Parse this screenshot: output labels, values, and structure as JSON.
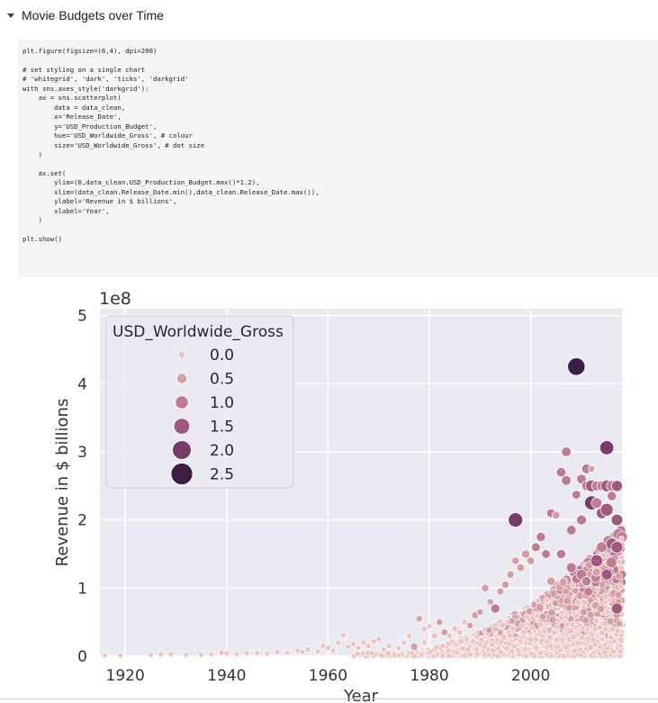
{
  "section": {
    "title": "Movie Budgets over Time",
    "caret_icon": "caret-down-icon"
  },
  "code": {
    "lines": [
      "plt.figure(figsize=(6,4), dpi=200)",
      "",
      "# set styling on a single chart",
      "# 'whitegrid', 'dark', 'ticks', 'darkgrid'",
      "with sns.axes_style('darkgrid'):",
      "    ax = sns.scatterplot(",
      "        data = data_clean,",
      "        x='Release_Date',",
      "        y='USD_Production_Budget',",
      "        hue='USD_Worldwide_Gross', # colour",
      "        size='USD_Worldwide_Gross', # dot size",
      "    )",
      "",
      "    ax.set(",
      "        ylim=(0,data_clean.USD_Production_Budget.max()*1.2),",
      "        xlim=(data_clean.Release_Date.min(),data_clean.Release_Date.max()),",
      "        ylabel='Revenue in $ billions',",
      "        xlabel='Year',",
      "    )",
      "",
      "plt.show()"
    ]
  },
  "chart_data": {
    "type": "scatter",
    "xlabel": "Year",
    "ylabel": "Revenue in $ billions",
    "offset_label": "1e8",
    "xlim": [
      1915,
      2018
    ],
    "ylim": [
      0,
      5.1
    ],
    "xticks": [
      1920,
      1940,
      1960,
      1980,
      2000
    ],
    "xtick_labels": [
      "1920",
      "1940",
      "1960",
      "1980",
      "2000"
    ],
    "yticks": [
      0,
      1,
      2,
      3,
      4,
      5
    ],
    "ytick_labels": [
      "0",
      "1",
      "2",
      "3",
      "4",
      "5"
    ],
    "grid": true,
    "legend": {
      "title": "USD_Worldwide_Gross",
      "placement": "upper-left",
      "entries": [
        {
          "label": "0.0",
          "color": "#ecc5c3"
        },
        {
          "label": "0.5",
          "color": "#d59ea3"
        },
        {
          "label": "1.0",
          "color": "#c07b92"
        },
        {
          "label": "1.5",
          "color": "#a2577f"
        },
        {
          "label": "2.0",
          "color": "#773c6c"
        },
        {
          "label": "2.5",
          "color": "#3a1f43"
        }
      ]
    },
    "points": [
      {
        "x": 1916,
        "y": 0.01,
        "g": 0.0
      },
      {
        "x": 1919,
        "y": 0.01,
        "g": 0.0
      },
      {
        "x": 1925,
        "y": 0.02,
        "g": 0.0
      },
      {
        "x": 1927,
        "y": 0.03,
        "g": 0.0
      },
      {
        "x": 1929,
        "y": 0.03,
        "g": 0.0
      },
      {
        "x": 1932,
        "y": 0.02,
        "g": 0.0
      },
      {
        "x": 1935,
        "y": 0.02,
        "g": 0.0
      },
      {
        "x": 1937,
        "y": 0.03,
        "g": 0.0
      },
      {
        "x": 1939,
        "y": 0.05,
        "g": 0.1
      },
      {
        "x": 1940,
        "y": 0.04,
        "g": 0.0
      },
      {
        "x": 1942,
        "y": 0.03,
        "g": 0.0
      },
      {
        "x": 1944,
        "y": 0.04,
        "g": 0.0
      },
      {
        "x": 1946,
        "y": 0.05,
        "g": 0.0
      },
      {
        "x": 1948,
        "y": 0.04,
        "g": 0.0
      },
      {
        "x": 1950,
        "y": 0.06,
        "g": 0.0
      },
      {
        "x": 1952,
        "y": 0.05,
        "g": 0.0
      },
      {
        "x": 1954,
        "y": 0.08,
        "g": 0.0
      },
      {
        "x": 1955,
        "y": 0.06,
        "g": 0.0
      },
      {
        "x": 1956,
        "y": 0.1,
        "g": 0.1
      },
      {
        "x": 1958,
        "y": 0.07,
        "g": 0.0
      },
      {
        "x": 1959,
        "y": 0.15,
        "g": 0.1
      },
      {
        "x": 1960,
        "y": 0.12,
        "g": 0.1
      },
      {
        "x": 1961,
        "y": 0.08,
        "g": 0.0
      },
      {
        "x": 1962,
        "y": 0.2,
        "g": 0.1
      },
      {
        "x": 1963,
        "y": 0.31,
        "g": 0.1
      },
      {
        "x": 1964,
        "y": 0.14,
        "g": 0.1
      },
      {
        "x": 1965,
        "y": 0.18,
        "g": 0.1
      },
      {
        "x": 1966,
        "y": 0.12,
        "g": 0.0
      },
      {
        "x": 1967,
        "y": 0.2,
        "g": 0.1
      },
      {
        "x": 1968,
        "y": 0.15,
        "g": 0.1
      },
      {
        "x": 1969,
        "y": 0.22,
        "g": 0.1
      },
      {
        "x": 1970,
        "y": 0.25,
        "g": 0.1
      },
      {
        "x": 1971,
        "y": 0.1,
        "g": 0.0
      },
      {
        "x": 1972,
        "y": 0.15,
        "g": 0.1
      },
      {
        "x": 1974,
        "y": 0.12,
        "g": 0.1
      },
      {
        "x": 1975,
        "y": 0.2,
        "g": 0.1
      },
      {
        "x": 1976,
        "y": 0.3,
        "g": 0.1
      },
      {
        "x": 1977,
        "y": 0.14,
        "g": 0.5
      },
      {
        "x": 1978,
        "y": 0.55,
        "g": 0.3
      },
      {
        "x": 1979,
        "y": 0.4,
        "g": 0.2
      },
      {
        "x": 1979,
        "y": 0.2,
        "g": 0.1
      },
      {
        "x": 1980,
        "y": 0.44,
        "g": 0.1
      },
      {
        "x": 1981,
        "y": 0.3,
        "g": 0.2
      },
      {
        "x": 1982,
        "y": 0.5,
        "g": 0.3
      },
      {
        "x": 1983,
        "y": 0.35,
        "g": 0.4
      },
      {
        "x": 1984,
        "y": 0.3,
        "g": 0.2
      },
      {
        "x": 1985,
        "y": 0.4,
        "g": 0.2
      },
      {
        "x": 1986,
        "y": 0.35,
        "g": 0.2
      },
      {
        "x": 1987,
        "y": 0.5,
        "g": 0.2
      },
      {
        "x": 1988,
        "y": 0.45,
        "g": 0.3
      },
      {
        "x": 1989,
        "y": 0.6,
        "g": 0.4
      },
      {
        "x": 1990,
        "y": 0.65,
        "g": 0.3
      },
      {
        "x": 1991,
        "y": 1.0,
        "g": 0.5
      },
      {
        "x": 1992,
        "y": 0.8,
        "g": 0.3
      },
      {
        "x": 1993,
        "y": 0.7,
        "g": 0.9
      },
      {
        "x": 1994,
        "y": 0.95,
        "g": 0.4
      },
      {
        "x": 1995,
        "y": 1.05,
        "g": 0.5
      },
      {
        "x": 1996,
        "y": 1.2,
        "g": 0.5
      },
      {
        "x": 1997,
        "y": 2.0,
        "g": 2.1
      },
      {
        "x": 1997,
        "y": 1.4,
        "g": 0.5
      },
      {
        "x": 1998,
        "y": 1.3,
        "g": 0.6
      },
      {
        "x": 1999,
        "y": 1.5,
        "g": 0.7
      },
      {
        "x": 2000,
        "y": 1.4,
        "g": 0.6
      },
      {
        "x": 2001,
        "y": 1.6,
        "g": 0.8
      },
      {
        "x": 2002,
        "y": 1.75,
        "g": 0.9
      },
      {
        "x": 2003,
        "y": 1.5,
        "g": 0.8
      },
      {
        "x": 2004,
        "y": 2.1,
        "g": 0.8
      },
      {
        "x": 2005,
        "y": 2.07,
        "g": 0.6
      },
      {
        "x": 2006,
        "y": 2.7,
        "g": 1.0
      },
      {
        "x": 2007,
        "y": 3.0,
        "g": 1.0
      },
      {
        "x": 2007,
        "y": 2.58,
        "g": 1.0
      },
      {
        "x": 2008,
        "y": 1.85,
        "g": 1.0
      },
      {
        "x": 2009,
        "y": 4.25,
        "g": 2.8
      },
      {
        "x": 2009,
        "y": 2.37,
        "g": 0.8
      },
      {
        "x": 2010,
        "y": 2.6,
        "g": 1.0
      },
      {
        "x": 2010,
        "y": 2.0,
        "g": 1.1
      },
      {
        "x": 2011,
        "y": 2.75,
        "g": 1.0
      },
      {
        "x": 2011,
        "y": 2.5,
        "g": 1.0
      },
      {
        "x": 2012,
        "y": 2.75,
        "g": 0.3
      },
      {
        "x": 2012,
        "y": 2.5,
        "g": 1.5
      },
      {
        "x": 2012,
        "y": 2.25,
        "g": 2.0
      },
      {
        "x": 2013,
        "y": 2.5,
        "g": 1.1
      },
      {
        "x": 2013,
        "y": 2.25,
        "g": 1.2
      },
      {
        "x": 2014,
        "y": 2.5,
        "g": 1.0
      },
      {
        "x": 2014,
        "y": 2.1,
        "g": 1.3
      },
      {
        "x": 2015,
        "y": 3.06,
        "g": 2.0
      },
      {
        "x": 2015,
        "y": 2.5,
        "g": 1.5
      },
      {
        "x": 2015,
        "y": 2.15,
        "g": 1.7
      },
      {
        "x": 2016,
        "y": 2.5,
        "g": 1.2
      },
      {
        "x": 2016,
        "y": 2.35,
        "g": 0.9
      },
      {
        "x": 2017,
        "y": 2.5,
        "g": 1.3
      },
      {
        "x": 2017,
        "y": 2.0,
        "g": 1.4
      },
      {
        "x": 2014,
        "y": 1.6,
        "g": 1.2
      },
      {
        "x": 2016,
        "y": 1.65,
        "g": 1.4
      },
      {
        "x": 2010,
        "y": 1.2,
        "g": 1.2
      },
      {
        "x": 2013,
        "y": 1.4,
        "g": 1.6
      },
      {
        "x": 2015,
        "y": 1.2,
        "g": 1.3
      },
      {
        "x": 2017,
        "y": 1.6,
        "g": 1.5
      },
      {
        "x": 2006,
        "y": 1.5,
        "g": 0.9
      },
      {
        "x": 2008,
        "y": 1.3,
        "g": 1.1
      },
      {
        "x": 2017,
        "y": 0.7,
        "g": 1.3
      },
      {
        "x": 2011,
        "y": 1.1,
        "g": 0.9
      },
      {
        "x": 2004,
        "y": 1.1,
        "g": 0.7
      }
    ]
  }
}
